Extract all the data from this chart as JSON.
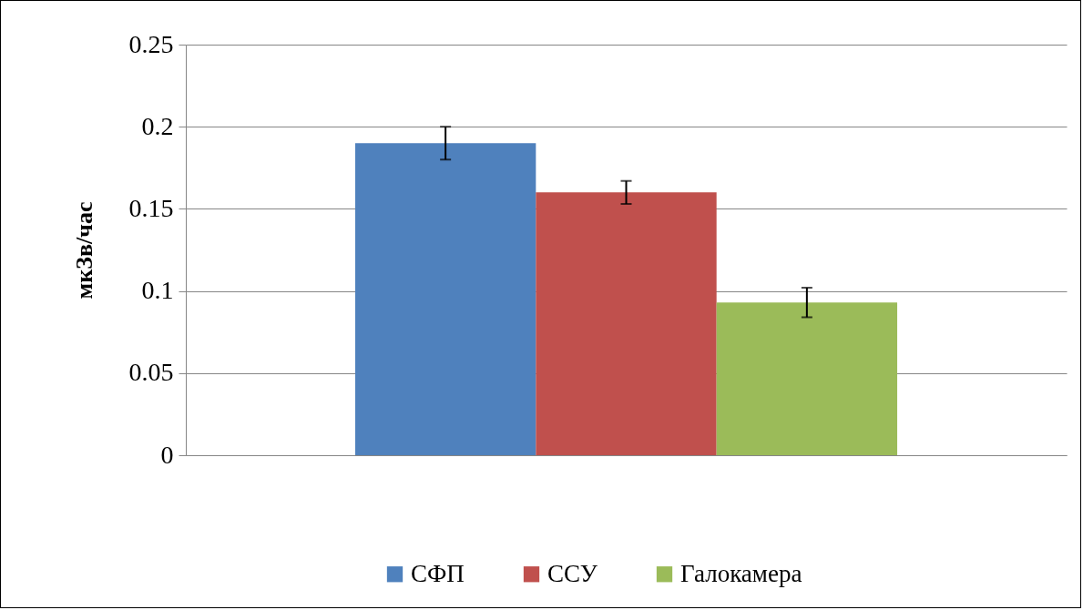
{
  "chart_data": {
    "type": "bar",
    "ylabel": "мкЗв/час",
    "categories": [
      null
    ],
    "series": [
      {
        "name": "СФП",
        "color": "#4f81bd",
        "values": [
          0.19
        ],
        "errors": [
          0.01
        ]
      },
      {
        "name": "ССУ",
        "color": "#c0504d",
        "values": [
          0.16
        ],
        "errors": [
          0.007
        ]
      },
      {
        "name": "Галокамера",
        "color": "#9bbb59",
        "values": [
          0.093
        ],
        "errors": [
          0.009
        ]
      }
    ],
    "ylim": [
      0,
      0.25
    ],
    "yticks": [
      0,
      0.05,
      0.1,
      0.15,
      0.2,
      0.25
    ],
    "grid": "y",
    "legend": "bottom"
  }
}
